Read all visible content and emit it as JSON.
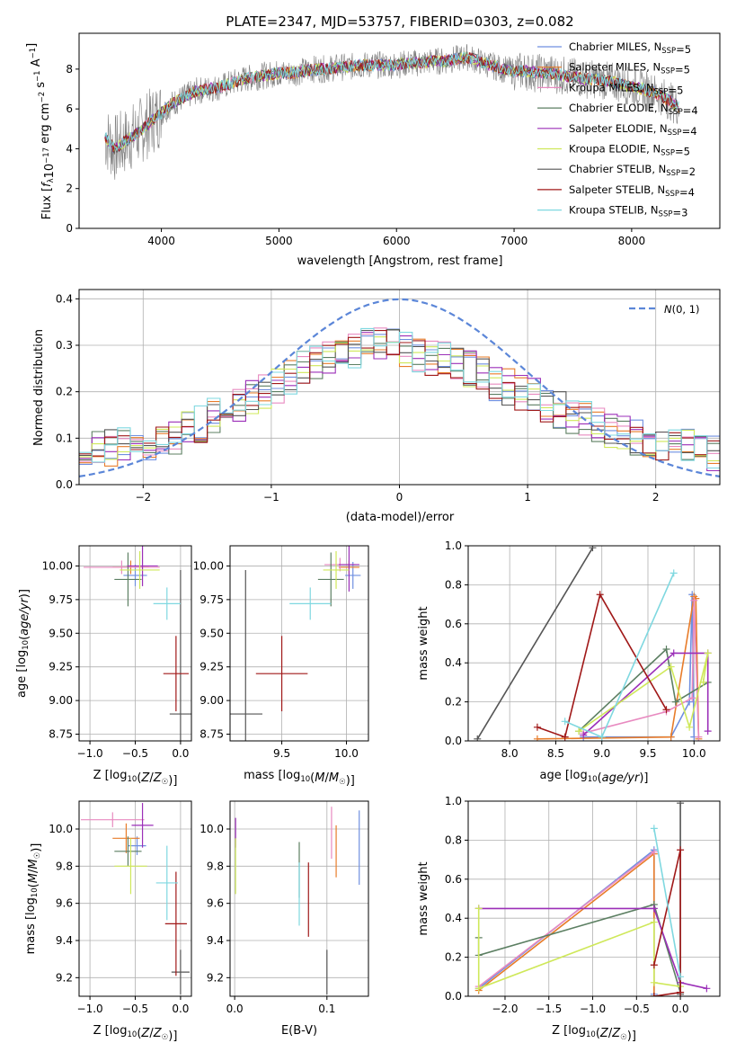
{
  "title": "PLATE=2347, MJD=53757, FIBERID=0303, z=0.082",
  "colors": {
    "Chabrier MILES": "#6f8fe0",
    "Salpeter MILES": "#e87c2a",
    "Kroupa MILES": "#e88ac0",
    "Chabrier ELODIE": "#5c7f62",
    "Salpeter ELODIE": "#9b2fb8",
    "Kroupa ELODIE": "#cfe85a",
    "Chabrier STELIB": "#555555",
    "Salpeter STELIB": "#a01818",
    "Kroupa STELIB": "#7fd8e0",
    "normal_curve": "#5b86d8",
    "data_spectrum": "#808080"
  },
  "chart_data": [
    {
      "id": "spectrum",
      "type": "line",
      "title": "PLATE=2347, MJD=53757, FIBERID=0303, z=0.082",
      "xlabel": "wavelength [Angstrom, rest frame]",
      "ylabel": "Flux [fλ10⁻¹⁷ erg cm⁻² s⁻¹ A⁻¹]",
      "xlim": [
        3300,
        8750
      ],
      "ylim": [
        0,
        9.8
      ],
      "xticks": [
        4000,
        5000,
        6000,
        7000,
        8000
      ],
      "yticks": [
        0,
        2,
        4,
        6,
        8
      ],
      "continuum": {
        "x": [
          3520,
          3600,
          3700,
          3800,
          3900,
          4000,
          4100,
          4200,
          4300,
          4400,
          4500,
          4600,
          4700,
          4800,
          4900,
          5000,
          5100,
          5200,
          5300,
          5400,
          5500,
          5600,
          5700,
          5800,
          5900,
          6000,
          6100,
          6200,
          6300,
          6400,
          6500,
          6600,
          6700,
          6800,
          6900,
          7000,
          7100,
          7200,
          7300,
          7400,
          7500,
          7600,
          7700,
          7800,
          7900,
          8000,
          8100,
          8200,
          8300,
          8400
        ],
        "y": [
          4.6,
          4.0,
          4.4,
          4.8,
          5.3,
          5.8,
          6.3,
          6.6,
          6.9,
          7.0,
          7.1,
          7.3,
          7.5,
          7.6,
          7.7,
          7.8,
          7.8,
          7.9,
          8.0,
          8.0,
          8.1,
          8.1,
          8.2,
          8.2,
          8.2,
          8.2,
          8.3,
          8.3,
          8.4,
          8.4,
          8.5,
          8.6,
          8.4,
          8.2,
          8.0,
          7.9,
          7.9,
          7.8,
          7.8,
          7.7,
          7.6,
          7.5,
          7.5,
          7.4,
          7.3,
          7.1,
          7.0,
          6.8,
          6.5,
          6.1
        ]
      },
      "series": [
        {
          "name": "Chabrier MILES, N_SSP=5"
        },
        {
          "name": "Salpeter MILES, N_SSP=5"
        },
        {
          "name": "Kroupa MILES, N_SSP=5"
        },
        {
          "name": "Chabrier ELODIE, N_SSP=4"
        },
        {
          "name": "Salpeter ELODIE, N_SSP=4"
        },
        {
          "name": "Kroupa ELODIE, N_SSP=5"
        },
        {
          "name": "Chabrier STELIB, N_SSP=2"
        },
        {
          "name": "Salpeter STELIB, N_SSP=4"
        },
        {
          "name": "Kroupa STELIB, N_SSP=3"
        }
      ],
      "legend": [
        {
          "text": "Chabrier MILES, N",
          "sub": "SSP",
          "tail": "=5",
          "color": "#6f8fe0"
        },
        {
          "text": "Salpeter MILES, N",
          "sub": "SSP",
          "tail": "=5",
          "color": "#e87c2a"
        },
        {
          "text": "Kroupa MILES, N",
          "sub": "SSP",
          "tail": "=5",
          "color": "#e88ac0"
        },
        {
          "text": "Chabrier ELODIE, N",
          "sub": "SSP",
          "tail": "=4",
          "color": "#5c7f62"
        },
        {
          "text": "Salpeter ELODIE, N",
          "sub": "SSP",
          "tail": "=4",
          "color": "#9b2fb8"
        },
        {
          "text": "Kroupa ELODIE, N",
          "sub": "SSP",
          "tail": "=5",
          "color": "#cfe85a"
        },
        {
          "text": "Chabrier STELIB, N",
          "sub": "SSP",
          "tail": "=2",
          "color": "#555555"
        },
        {
          "text": "Salpeter STELIB, N",
          "sub": "SSP",
          "tail": "=4",
          "color": "#a01818"
        },
        {
          "text": "Kroupa STELIB, N",
          "sub": "SSP",
          "tail": "=3",
          "color": "#7fd8e0"
        }
      ],
      "legend_position": "right"
    },
    {
      "id": "residuals",
      "type": "line",
      "xlabel": "(data-model)/error",
      "ylabel": "Normed distribution",
      "xlim": [
        -2.5,
        2.5
      ],
      "ylim": [
        0,
        0.42
      ],
      "xticks": [
        -2,
        -1,
        0,
        1,
        2
      ],
      "yticks": [
        0.0,
        0.1,
        0.2,
        0.3,
        0.4
      ],
      "ytick_labels": [
        "0.0",
        "0.1",
        "0.2",
        "0.3",
        "0.4"
      ],
      "bin_width": 0.1,
      "hist_envelope": [
        0.07,
        0.075,
        0.08,
        0.085,
        0.09,
        0.09,
        0.1,
        0.1,
        0.12,
        0.13,
        0.15,
        0.16,
        0.17,
        0.19,
        0.2,
        0.21,
        0.23,
        0.25,
        0.26,
        0.27,
        0.28,
        0.29,
        0.3,
        0.3,
        0.31,
        0.29,
        0.28,
        0.27,
        0.27,
        0.26,
        0.25,
        0.24,
        0.22,
        0.21,
        0.2,
        0.19,
        0.17,
        0.16,
        0.15,
        0.14,
        0.13,
        0.12,
        0.11,
        0.1,
        0.1,
        0.09,
        0.09,
        0.08,
        0.08,
        0.07
      ],
      "legend": "𝒩(0, 1)",
      "legend_position": "top-right",
      "grid": true
    },
    {
      "id": "age-vs-Z",
      "type": "scatter",
      "xlabel": "Z [log₁₀(Z/Z☉)]",
      "ylabel": "age  [log₁₀(age/yr)]",
      "xlim": [
        -1.12,
        0.12
      ],
      "ylim": [
        8.7,
        10.15
      ],
      "xticks": [
        -1.0,
        -0.5,
        0.0
      ],
      "xtick_labels": [
        "−1.0",
        "−0.5",
        "0.0"
      ],
      "yticks": [
        8.75,
        9.0,
        9.25,
        9.5,
        9.75,
        10.0
      ],
      "ytick_labels": [
        "8.75",
        "9.00",
        "9.25",
        "9.50",
        "9.75",
        "10.00"
      ],
      "points": [
        {
          "s": "Chabrier MILES",
          "x": -0.5,
          "y": 9.93,
          "ex": 0.13,
          "ey": 0.08
        },
        {
          "s": "Salpeter MILES",
          "x": -0.55,
          "y": 9.99,
          "ex": 0.2,
          "ey": 0.05
        },
        {
          "s": "Kroupa MILES",
          "x": -0.65,
          "y": 9.99,
          "ex": 0.42,
          "ey": 0.05
        },
        {
          "s": "Chabrier ELODIE",
          "x": -0.58,
          "y": 9.9,
          "ex": 0.15,
          "ey": 0.2
        },
        {
          "s": "Salpeter ELODIE",
          "x": -0.42,
          "y": 10.0,
          "ex": 0.17,
          "ey": 0.15
        },
        {
          "s": "Kroupa ELODIE",
          "x": -0.45,
          "y": 9.97,
          "ex": 0.22,
          "ey": 0.14
        },
        {
          "s": "Chabrier STELIB",
          "x": 0.0,
          "y": 8.9,
          "ex": 0.12,
          "ey": 1.07
        },
        {
          "s": "Salpeter STELIB",
          "x": -0.05,
          "y": 9.2,
          "ex": 0.14,
          "ey": 0.28
        },
        {
          "s": "Kroupa STELIB",
          "x": -0.15,
          "y": 9.72,
          "ex": 0.15,
          "ey": 0.12
        }
      ]
    },
    {
      "id": "age-vs-mass",
      "type": "scatter",
      "xlabel": "mass [log₁₀(M/M☉)]",
      "xlim": [
        9.1,
        10.17
      ],
      "ylim": [
        8.7,
        10.15
      ],
      "xticks": [
        9.5,
        10.0
      ],
      "xtick_labels": [
        "9.5",
        "10.0"
      ],
      "yticks": [
        8.75,
        9.0,
        9.25,
        9.5,
        9.75,
        10.0
      ],
      "ytick_labels": [
        "8.75",
        "9.00",
        "9.25",
        "9.50",
        "9.75",
        "10.00"
      ],
      "points": [
        {
          "s": "Chabrier MILES",
          "x": 10.05,
          "y": 9.93,
          "ex": 0.06,
          "ey": 0.1
        },
        {
          "s": "Salpeter MILES",
          "x": 10.02,
          "y": 9.99,
          "ex": 0.08,
          "ey": 0.05
        },
        {
          "s": "Kroupa MILES",
          "x": 9.95,
          "y": 10.01,
          "ex": 0.12,
          "ey": 0.05
        },
        {
          "s": "Chabrier ELODIE",
          "x": 9.88,
          "y": 9.9,
          "ex": 0.1,
          "ey": 0.2
        },
        {
          "s": "Salpeter ELODIE",
          "x": 10.02,
          "y": 10.01,
          "ex": 0.08,
          "ey": 0.2
        },
        {
          "s": "Kroupa ELODIE",
          "x": 9.92,
          "y": 9.97,
          "ex": 0.1,
          "ey": 0.14
        },
        {
          "s": "Chabrier STELIB",
          "x": 9.22,
          "y": 8.9,
          "ex": 0.13,
          "ey": 1.07
        },
        {
          "s": "Salpeter STELIB",
          "x": 9.5,
          "y": 9.2,
          "ex": 0.2,
          "ey": 0.28
        },
        {
          "s": "Kroupa STELIB",
          "x": 9.72,
          "y": 9.72,
          "ex": 0.16,
          "ey": 0.12
        }
      ]
    },
    {
      "id": "weight-vs-age",
      "type": "line",
      "xlabel": "age  [log₁₀(age/yr)]",
      "ylabel": "mass weight",
      "xlim": [
        7.55,
        10.28
      ],
      "ylim": [
        0,
        1.0
      ],
      "xticks": [
        8.0,
        8.5,
        9.0,
        9.5,
        10.0
      ],
      "xtick_labels": [
        "8.0",
        "8.5",
        "9.0",
        "9.5",
        "10.0"
      ],
      "yticks": [
        0.0,
        0.2,
        0.4,
        0.6,
        0.8,
        1.0
      ],
      "ytick_labels": [
        "0.0",
        "0.2",
        "0.4",
        "0.6",
        "0.8",
        "1.0"
      ],
      "series": [
        {
          "s": "Chabrier MILES",
          "x": [
            8.8,
            9.75,
            9.95,
            9.98,
            10.0
          ],
          "y": [
            0.02,
            0.02,
            0.2,
            0.75,
            0.02
          ]
        },
        {
          "s": "Salpeter MILES",
          "x": [
            8.3,
            9.75,
            10.0,
            10.02,
            10.05
          ],
          "y": [
            0.01,
            0.02,
            0.74,
            0.73,
            0.01
          ]
        },
        {
          "s": "Kroupa MILES",
          "x": [
            8.8,
            9.7,
            9.98,
            10.0,
            10.05
          ],
          "y": [
            0.04,
            0.15,
            0.22,
            0.72,
            0.02
          ]
        },
        {
          "s": "Chabrier ELODIE",
          "x": [
            8.75,
            9.7,
            9.8,
            10.15
          ],
          "y": [
            0.05,
            0.47,
            0.2,
            0.3
          ]
        },
        {
          "s": "Salpeter ELODIE",
          "x": [
            8.8,
            9.78,
            10.15,
            10.15
          ],
          "y": [
            0.03,
            0.45,
            0.45,
            0.05
          ]
        },
        {
          "s": "Kroupa ELODIE",
          "x": [
            8.75,
            9.75,
            9.95,
            10.15,
            10.1
          ],
          "y": [
            0.05,
            0.38,
            0.07,
            0.45,
            0.3
          ]
        },
        {
          "s": "Chabrier STELIB",
          "x": [
            7.65,
            8.9
          ],
          "y": [
            0.01,
            0.99
          ]
        },
        {
          "s": "Salpeter STELIB",
          "x": [
            8.3,
            8.6,
            8.98,
            9.7
          ],
          "y": [
            0.07,
            0.02,
            0.75,
            0.16
          ]
        },
        {
          "s": "Kroupa STELIB",
          "x": [
            8.6,
            9.0,
            9.78
          ],
          "y": [
            0.1,
            0.02,
            0.86
          ]
        }
      ]
    },
    {
      "id": "mass-vs-Z",
      "type": "scatter",
      "xlabel": "Z [log₁₀(Z/Z☉)]",
      "ylabel": "mass [log₁₀(M/M☉)]",
      "xlim": [
        -1.12,
        0.12
      ],
      "ylim": [
        9.1,
        10.15
      ],
      "xticks": [
        -1.0,
        -0.5,
        0.0
      ],
      "xtick_labels": [
        "−1.0",
        "−0.5",
        "0.0"
      ],
      "yticks": [
        9.2,
        9.4,
        9.6,
        9.8,
        10.0
      ],
      "ytick_labels": [
        "9.2",
        "9.4",
        "9.6",
        "9.8",
        "10.0"
      ],
      "points": [
        {
          "s": "Chabrier MILES",
          "x": -0.48,
          "y": 9.91,
          "ex": 0.1,
          "ey": 0.05
        },
        {
          "s": "Salpeter MILES",
          "x": -0.6,
          "y": 9.95,
          "ex": 0.15,
          "ey": 0.08
        },
        {
          "s": "Kroupa MILES",
          "x": -0.75,
          "y": 10.05,
          "ex": 0.35,
          "ey": 0.04
        },
        {
          "s": "Chabrier ELODIE",
          "x": -0.58,
          "y": 9.88,
          "ex": 0.15,
          "ey": 0.08
        },
        {
          "s": "Salpeter ELODIE",
          "x": -0.42,
          "y": 10.02,
          "ex": 0.12,
          "ey": 0.12
        },
        {
          "s": "Kroupa ELODIE",
          "x": -0.55,
          "y": 9.8,
          "ex": 0.18,
          "ey": 0.15
        },
        {
          "s": "Chabrier STELIB",
          "x": 0.0,
          "y": 9.23,
          "ex": 0.1,
          "ey": 0.12
        },
        {
          "s": "Salpeter STELIB",
          "x": -0.05,
          "y": 9.49,
          "ex": 0.12,
          "ey": 0.28
        },
        {
          "s": "Kroupa STELIB",
          "x": -0.15,
          "y": 9.71,
          "ex": 0.12,
          "ey": 0.2
        }
      ]
    },
    {
      "id": "mass-vs-EBV",
      "type": "scatter",
      "xlabel": "E(B-V)",
      "xlim": [
        -0.005,
        0.145
      ],
      "ylim": [
        9.1,
        10.15
      ],
      "xticks": [
        0.0,
        0.1
      ],
      "xtick_labels": [
        "0.0",
        "0.1"
      ],
      "yticks": [
        9.2,
        9.4,
        9.6,
        9.8,
        10.0
      ],
      "ytick_labels": [
        "9.2",
        "9.4",
        "9.6",
        "9.8",
        "10.0"
      ],
      "points": [
        {
          "s": "Chabrier MILES",
          "x": 0.135,
          "y": 9.9,
          "ex": 0,
          "ey": 0.2
        },
        {
          "s": "Salpeter MILES",
          "x": 0.11,
          "y": 9.88,
          "ex": 0,
          "ey": 0.14
        },
        {
          "s": "Kroupa MILES",
          "x": 0.105,
          "y": 9.98,
          "ex": 0,
          "ey": 0.14
        },
        {
          "s": "Chabrier ELODIE",
          "x": 0.07,
          "y": 9.78,
          "ex": 0,
          "ey": 0.15
        },
        {
          "s": "Salpeter ELODIE",
          "x": 0.001,
          "y": 9.98,
          "ex": 0,
          "ey": 0.08
        },
        {
          "s": "Kroupa ELODIE",
          "x": 0.001,
          "y": 9.8,
          "ex": 0,
          "ey": 0.15
        },
        {
          "s": "Chabrier STELIB",
          "x": 0.1,
          "y": 9.23,
          "ex": 0,
          "ey": 0.12
        },
        {
          "s": "Salpeter STELIB",
          "x": 0.08,
          "y": 9.62,
          "ex": 0,
          "ey": 0.2
        },
        {
          "s": "Kroupa STELIB",
          "x": 0.07,
          "y": 9.65,
          "ex": 0,
          "ey": 0.17
        }
      ]
    },
    {
      "id": "weight-vs-Z",
      "type": "line",
      "xlabel": "Z [log₁₀(Z/Z☉)]",
      "ylabel": "mass weight",
      "xlim": [
        -2.42,
        0.45
      ],
      "ylim": [
        0,
        1.0
      ],
      "xticks": [
        -2.0,
        -1.5,
        -1.0,
        -0.5,
        0.0
      ],
      "xtick_labels": [
        "−2.0",
        "−1.5",
        "−1.0",
        "−0.5",
        "0.0"
      ],
      "yticks": [
        0.0,
        0.2,
        0.4,
        0.6,
        0.8,
        1.0
      ],
      "ytick_labels": [
        "0.0",
        "0.2",
        "0.4",
        "0.6",
        "0.8",
        "1.0"
      ],
      "series": [
        {
          "s": "Chabrier MILES",
          "x": [
            -2.3,
            -0.3,
            -0.3
          ],
          "y": [
            0.04,
            0.75,
            0.01
          ]
        },
        {
          "s": "Salpeter MILES",
          "x": [
            -2.3,
            -0.3,
            -0.3
          ],
          "y": [
            0.03,
            0.73,
            0.0
          ]
        },
        {
          "s": "Kroupa MILES",
          "x": [
            -2.3,
            -0.3
          ],
          "y": [
            0.05,
            0.74
          ]
        },
        {
          "s": "Chabrier ELODIE",
          "x": [
            -2.3,
            -2.3,
            -0.3,
            0.0
          ],
          "y": [
            0.3,
            0.21,
            0.47,
            0.02
          ]
        },
        {
          "s": "Salpeter ELODIE",
          "x": [
            -2.3,
            -0.3,
            0.0,
            0.3
          ],
          "y": [
            0.45,
            0.45,
            0.07,
            0.04
          ]
        },
        {
          "s": "Kroupa ELODIE",
          "x": [
            -2.3,
            -2.3,
            -0.3,
            -0.3,
            0.0
          ],
          "y": [
            0.45,
            0.04,
            0.38,
            0.07,
            0.05
          ]
        },
        {
          "s": "Chabrier STELIB",
          "x": [
            0.0,
            0.0
          ],
          "y": [
            0.01,
            0.99
          ]
        },
        {
          "s": "Salpeter STELIB",
          "x": [
            -0.3,
            0.0,
            0.0,
            -0.3
          ],
          "y": [
            0.16,
            0.75,
            0.02,
            0.0
          ]
        },
        {
          "s": "Kroupa STELIB",
          "x": [
            -0.3,
            0.0
          ],
          "y": [
            0.86,
            0.1
          ]
        }
      ]
    }
  ]
}
